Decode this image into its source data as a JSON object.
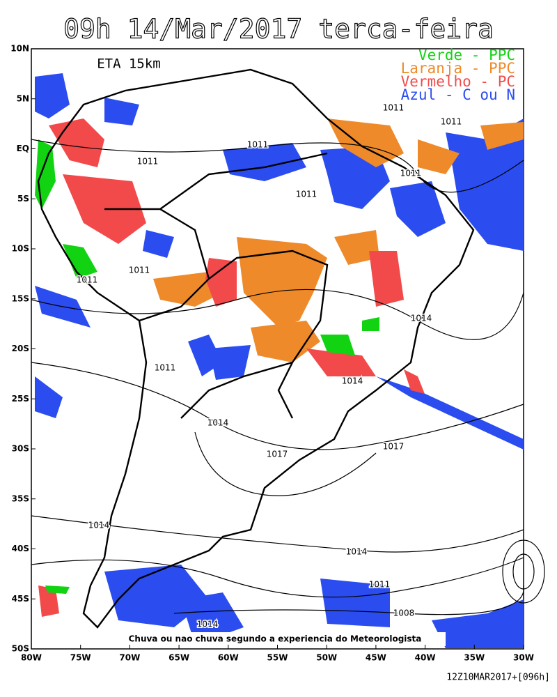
{
  "header": {
    "title": "09h 14/Mar/2017 terca-feira"
  },
  "model": "ETA 15km",
  "legend": [
    {
      "label": "Verde - PPC",
      "color": "#12d312"
    },
    {
      "label": "Laranja - PPC",
      "color": "#ee8a2a"
    },
    {
      "label": "Vermelho - PC",
      "color": "#f24a4a"
    },
    {
      "label": "Azul - C ou N",
      "color": "#2b4df0"
    }
  ],
  "isobar_labels": [
    "1011",
    "1011",
    "1011",
    "1011",
    "1011",
    "1011",
    "1011",
    "1011",
    "1014",
    "1011",
    "1014",
    "1014",
    "1017",
    "1017",
    "1014",
    "1014",
    "1011",
    "1008",
    "1014"
  ],
  "x_axis": {
    "labels": [
      "80W",
      "75W",
      "70W",
      "65W",
      "60W",
      "55W",
      "50W",
      "45W",
      "40W",
      "35W",
      "30W"
    ]
  },
  "y_axis": {
    "labels": [
      "10N",
      "5N",
      "EQ",
      "5S",
      "10S",
      "15S",
      "20S",
      "25S",
      "30S",
      "35S",
      "40S",
      "45S",
      "50S"
    ]
  },
  "footer_note": "Chuva ou nao chuva segundo a experiencia do Meteorologista",
  "run_info": "12Z10MAR2017+[096h]"
}
